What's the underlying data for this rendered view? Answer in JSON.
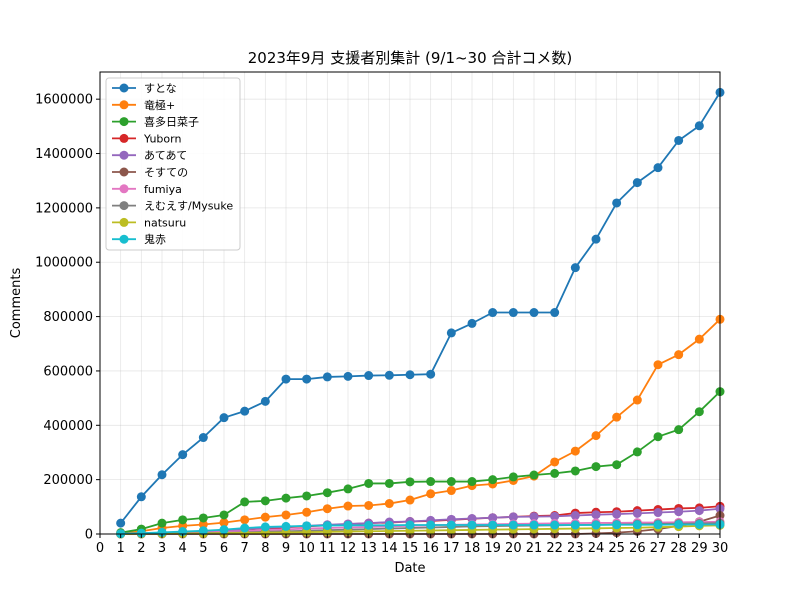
{
  "chart_data": {
    "type": "line",
    "title": "2023年9月 支援者別集計 (9/1~30 合計コメ数)",
    "xlabel": "Date",
    "ylabel": "Comments",
    "xlim": [
      0,
      30
    ],
    "ylim": [
      0,
      1700000
    ],
    "xticks": [
      0,
      1,
      2,
      3,
      4,
      5,
      6,
      7,
      8,
      9,
      10,
      11,
      12,
      13,
      14,
      15,
      16,
      17,
      18,
      19,
      20,
      21,
      22,
      23,
      24,
      25,
      26,
      27,
      28,
      29,
      30
    ],
    "yticks": [
      0,
      200000,
      400000,
      600000,
      800000,
      1000000,
      1200000,
      1400000,
      1600000
    ],
    "grid": true,
    "legend_position": "top-left",
    "x": [
      1,
      2,
      3,
      4,
      5,
      6,
      7,
      8,
      9,
      10,
      11,
      12,
      13,
      14,
      15,
      16,
      17,
      18,
      19,
      20,
      21,
      22,
      23,
      24,
      25,
      26,
      27,
      28,
      29,
      30
    ],
    "series": [
      {
        "name": "すとな",
        "color": "#1f77b4",
        "values": [
          40000,
          137000,
          218000,
          292000,
          355000,
          428000,
          452000,
          488000,
          570000,
          570000,
          578000,
          580000,
          583000,
          584000,
          586000,
          588000,
          740000,
          775000,
          815000,
          815000,
          815000,
          815000,
          980000,
          1085000,
          1218000,
          1293000,
          1348000,
          1448000,
          1502000,
          1625000
        ]
      },
      {
        "name": "竜極+",
        "color": "#ff7f0e",
        "values": [
          2000,
          10000,
          22000,
          30000,
          35000,
          42000,
          52000,
          62000,
          70000,
          80000,
          93000,
          103000,
          105000,
          112000,
          125000,
          148000,
          160000,
          178000,
          184000,
          197000,
          213000,
          265000,
          305000,
          362000,
          430000,
          493000,
          623000,
          660000,
          717000,
          790000
        ]
      },
      {
        "name": "喜多日菜子",
        "color": "#2ca02c",
        "values": [
          5000,
          18000,
          40000,
          52000,
          59000,
          70000,
          118000,
          122000,
          132000,
          140000,
          152000,
          166000,
          186000,
          186000,
          192000,
          193000,
          193000,
          193000,
          200000,
          210000,
          217000,
          223000,
          232000,
          248000,
          255000,
          302000,
          358000,
          384000,
          450000,
          524000
        ]
      },
      {
        "name": "Yuborn",
        "color": "#d62728",
        "values": [
          500,
          1500,
          3000,
          5000,
          7000,
          10000,
          12000,
          15000,
          25000,
          28000,
          32000,
          36000,
          40000,
          42000,
          46000,
          48000,
          52000,
          56000,
          60000,
          63000,
          66000,
          68000,
          77000,
          80000,
          82000,
          86000,
          90000,
          94000,
          96000,
          102000
        ]
      },
      {
        "name": "あてあて",
        "color": "#9467bd",
        "values": [
          500,
          2000,
          4000,
          6000,
          8000,
          12000,
          18000,
          22000,
          26000,
          30000,
          34000,
          37000,
          40000,
          44000,
          46000,
          50000,
          54000,
          57000,
          60000,
          63000,
          64000,
          65000,
          68000,
          71000,
          73000,
          76000,
          79000,
          82000,
          86000,
          93000
        ]
      },
      {
        "name": "そすての",
        "color": "#8c564b",
        "values": [
          0,
          0,
          0,
          0,
          0,
          0,
          0,
          0,
          0,
          0,
          0,
          0,
          0,
          0,
          0,
          0,
          0,
          0,
          0,
          0,
          0,
          0,
          0,
          2000,
          5000,
          10000,
          18000,
          30000,
          45000,
          68000
        ]
      },
      {
        "name": "fumiya",
        "color": "#e377c2",
        "values": [
          500,
          1000,
          2000,
          3000,
          5000,
          8000,
          11000,
          14000,
          17000,
          20000,
          22000,
          24000,
          26000,
          28000,
          30000,
          32000,
          34000,
          35000,
          36000,
          37000,
          38000,
          39000,
          40000,
          41000,
          41000,
          42000,
          42000,
          43000,
          44000,
          45000
        ]
      },
      {
        "name": "えむえす/Mysuke",
        "color": "#7f7f7f",
        "values": [
          0,
          500,
          1000,
          2000,
          3000,
          4000,
          6000,
          8000,
          10000,
          12000,
          14000,
          16000,
          18000,
          20000,
          22000,
          24000,
          26000,
          28000,
          29000,
          30000,
          31000,
          32000,
          33000,
          34000,
          35000,
          36000,
          37000,
          38000,
          39000,
          40000
        ]
      },
      {
        "name": "natsuru",
        "color": "#bcbd22",
        "values": [
          0,
          500,
          1000,
          1500,
          2000,
          3000,
          4000,
          5000,
          6000,
          7000,
          8000,
          9000,
          10000,
          11000,
          12000,
          13000,
          14000,
          15000,
          16000,
          17000,
          18000,
          19000,
          20000,
          21000,
          22000,
          23000,
          25000,
          27000,
          30000,
          32000
        ]
      },
      {
        "name": "鬼赤",
        "color": "#17becf",
        "values": [
          1000,
          3000,
          6000,
          9000,
          12000,
          16000,
          22000,
          26000,
          28000,
          30000,
          31000,
          32000,
          32000,
          32000,
          33000,
          33000,
          33000,
          33000,
          33000,
          33000,
          33000,
          33000,
          33000,
          33000,
          34000,
          34000,
          34000,
          35000,
          35000,
          35000
        ]
      }
    ]
  }
}
